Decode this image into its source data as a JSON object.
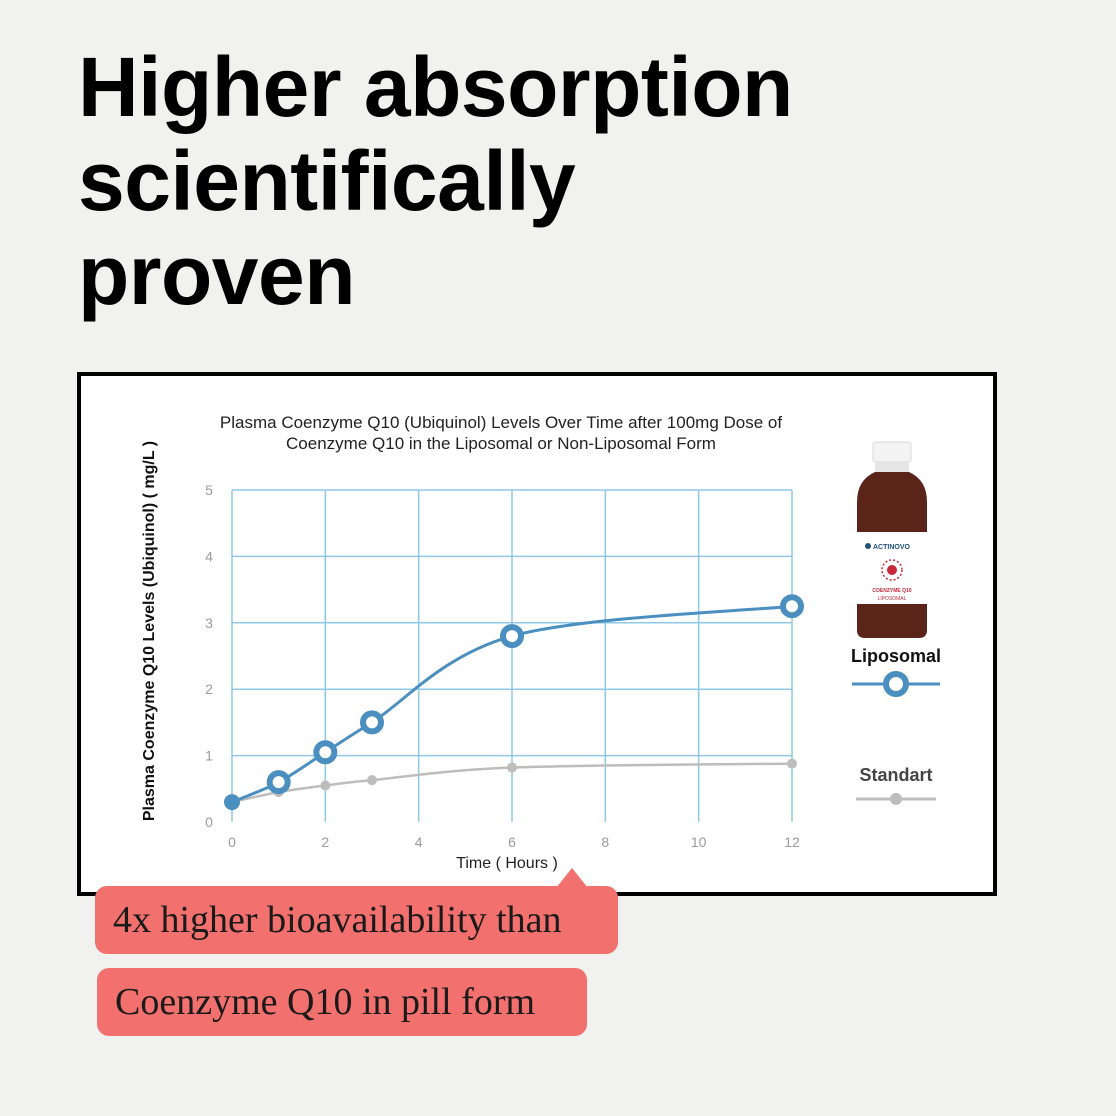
{
  "headline": {
    "line1": "Higher absorption",
    "line2": "scientifically",
    "line3": "proven"
  },
  "chart_data": {
    "type": "line",
    "title": "Plasma Coenzyme Q10 (Ubiquinol) Levels Over Time after 100mg Dose of",
    "subtitle": "Coenzyme Q10 in the Liposomal or Non-Liposomal Form",
    "xlabel": "Time ( Hours )",
    "ylabel": "Plasma Coenzyme Q10 Levels (Ubiquinol) ( mg/L )",
    "xlim": [
      0,
      12
    ],
    "ylim": [
      0,
      5
    ],
    "x_ticks": [
      0,
      2,
      4,
      6,
      8,
      10,
      12
    ],
    "y_ticks": [
      0,
      1,
      2,
      3,
      4,
      5
    ],
    "grid": true,
    "legend_position": "right",
    "series": [
      {
        "name": "Liposomal",
        "color": "#4a8fc0",
        "x": [
          0,
          1,
          2,
          3,
          6,
          12
        ],
        "values": [
          0.3,
          0.6,
          1.05,
          1.5,
          2.8,
          3.25
        ]
      },
      {
        "name": "Standart",
        "color": "#bdbdbd",
        "x": [
          0,
          1,
          2,
          3,
          6,
          12
        ],
        "values": [
          0.3,
          0.45,
          0.55,
          0.63,
          0.82,
          0.88
        ]
      }
    ],
    "product_image": {
      "brand": "ACTINOVO",
      "label": "COENZYME Q10",
      "sublabel": "LIPOSOMAL"
    }
  },
  "callouts": {
    "line1": "4x higher bioavailability than",
    "line2": "Coenzyme Q10 in pill form"
  },
  "colors": {
    "accent_red": "#f2706d",
    "liposomal_blue": "#4a8fc0",
    "grid_blue": "#8fc9e6",
    "standard_gray": "#bdbdbd"
  }
}
